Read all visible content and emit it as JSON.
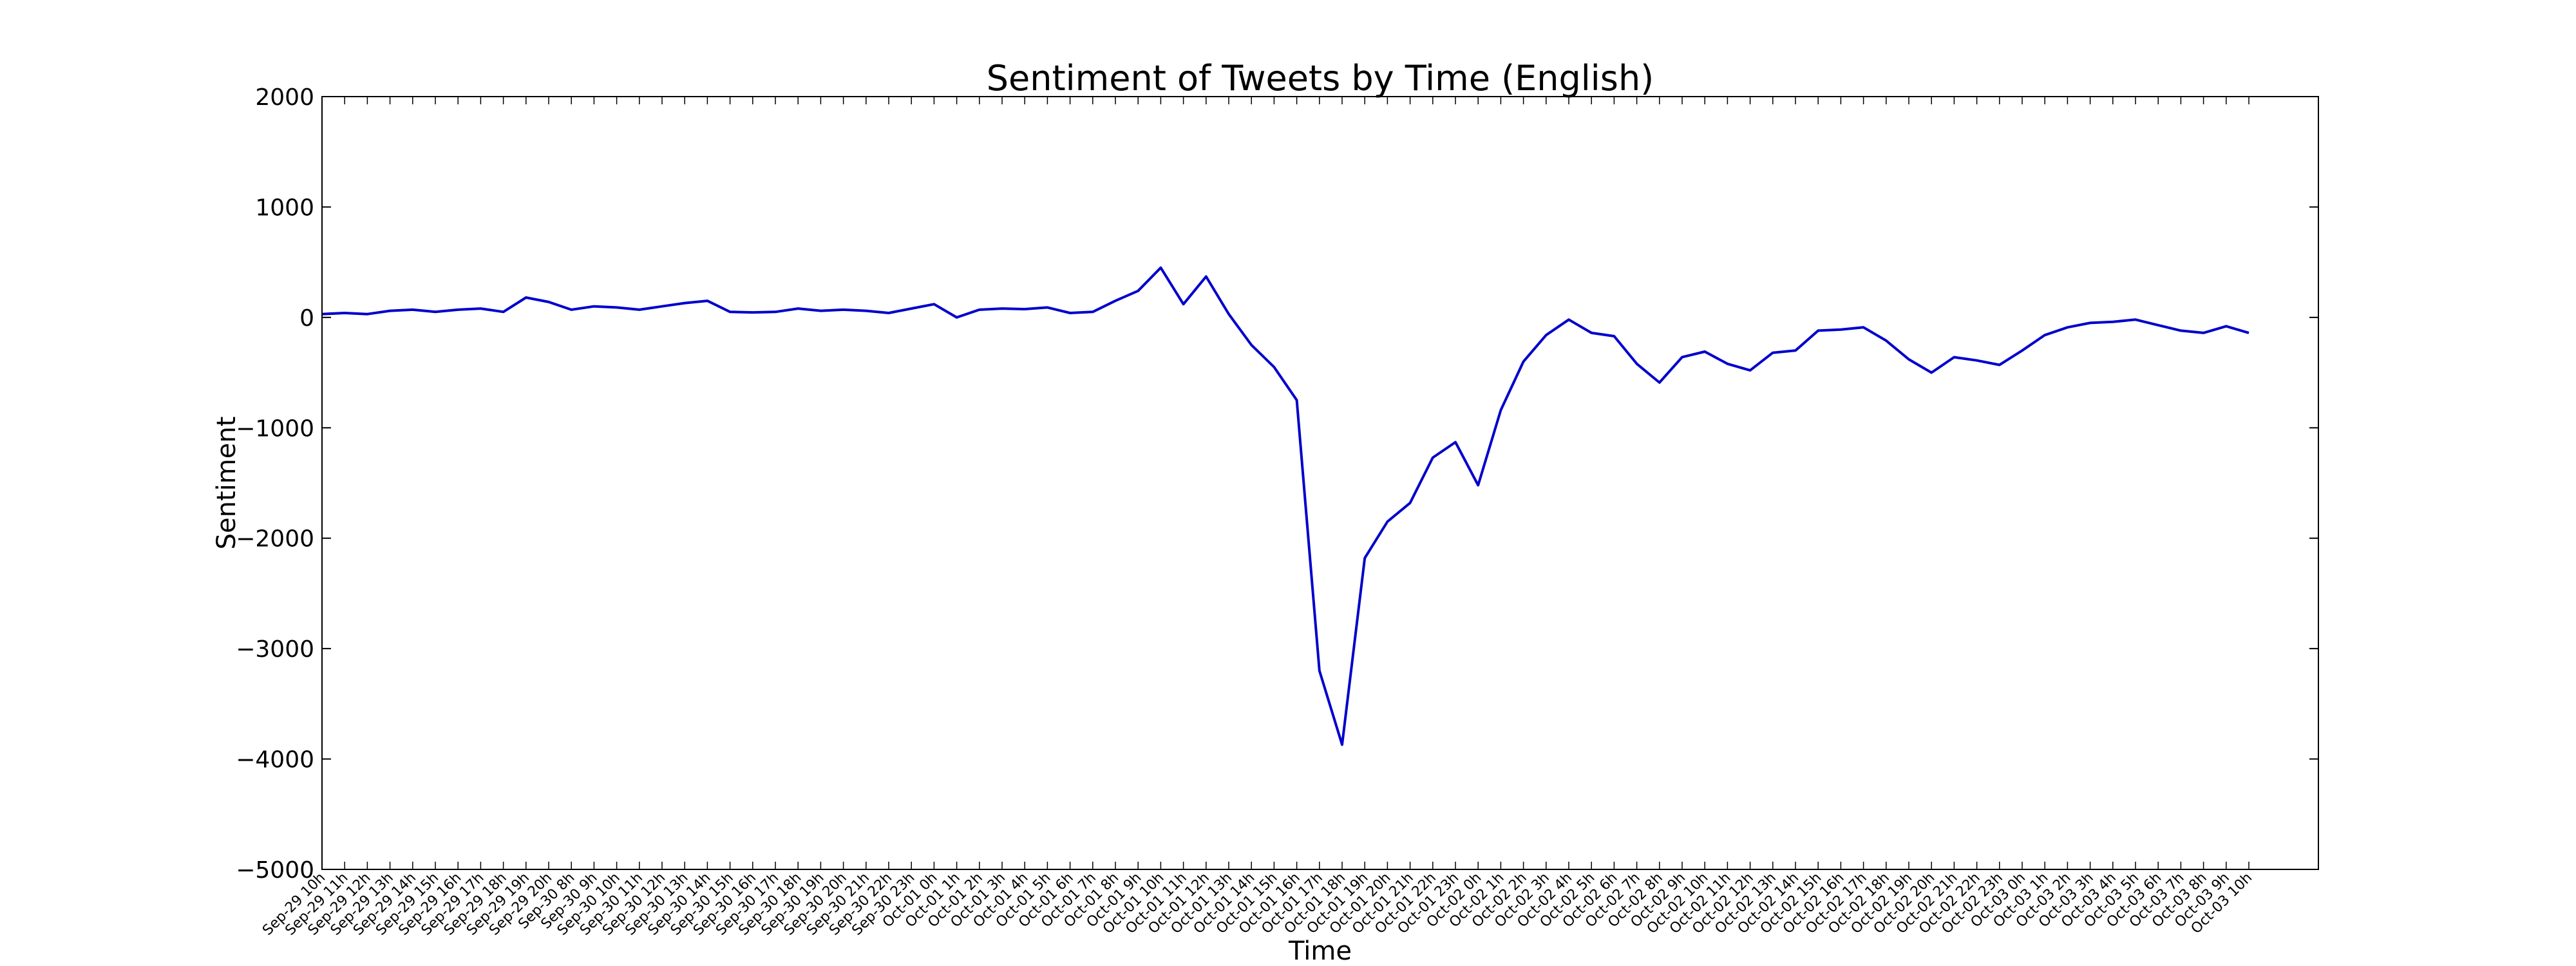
{
  "chart_data": {
    "type": "line",
    "title": "Sentiment of Tweets by Time (English)",
    "xlabel": "Time",
    "ylabel": "Sentiment",
    "ylim": [
      -5000,
      2000
    ],
    "yticks": [
      2000,
      1000,
      0,
      -1000,
      -2000,
      -3000,
      -4000,
      -5000
    ],
    "ytick_labels": [
      "2000",
      "1000",
      "0",
      "−1000",
      "−2000",
      "−3000",
      "−4000",
      "−5000"
    ],
    "grid": false,
    "line_color": "#0000cc",
    "categories": [
      "Sep-29 10h",
      "Sep-29 11h",
      "Sep-29 12h",
      "Sep-29 13h",
      "Sep-29 14h",
      "Sep-29 15h",
      "Sep-29 16h",
      "Sep-29 17h",
      "Sep-29 18h",
      "Sep-29 19h",
      "Sep-29 20h",
      "Sep-30 8h",
      "Sep-30 9h",
      "Sep-30 10h",
      "Sep-30 11h",
      "Sep-30 12h",
      "Sep-30 13h",
      "Sep-30 14h",
      "Sep-30 15h",
      "Sep-30 16h",
      "Sep-30 17h",
      "Sep-30 18h",
      "Sep-30 19h",
      "Sep-30 20h",
      "Sep-30 21h",
      "Sep-30 22h",
      "Sep-30 23h",
      "Oct-01 0h",
      "Oct-01 1h",
      "Oct-01 2h",
      "Oct-01 3h",
      "Oct-01 4h",
      "Oct-01 5h",
      "Oct-01 6h",
      "Oct-01 7h",
      "Oct-01 8h",
      "Oct-01 9h",
      "Oct-01 10h",
      "Oct-01 11h",
      "Oct-01 12h",
      "Oct-01 13h",
      "Oct-01 14h",
      "Oct-01 15h",
      "Oct-01 16h",
      "Oct-01 17h",
      "Oct-01 18h",
      "Oct-01 19h",
      "Oct-01 20h",
      "Oct-01 21h",
      "Oct-01 22h",
      "Oct-01 23h",
      "Oct-02 0h",
      "Oct-02 1h",
      "Oct-02 2h",
      "Oct-02 3h",
      "Oct-02 4h",
      "Oct-02 5h",
      "Oct-02 6h",
      "Oct-02 7h",
      "Oct-02 8h",
      "Oct-02 9h",
      "Oct-02 10h",
      "Oct-02 11h",
      "Oct-02 12h",
      "Oct-02 13h",
      "Oct-02 14h",
      "Oct-02 15h",
      "Oct-02 16h",
      "Oct-02 17h",
      "Oct-02 18h",
      "Oct-02 19h",
      "Oct-02 20h",
      "Oct-02 21h",
      "Oct-02 22h",
      "Oct-02 23h",
      "Oct-03 0h",
      "Oct-03 1h",
      "Oct-03 2h",
      "Oct-03 3h",
      "Oct-03 4h",
      "Oct-03 5h",
      "Oct-03 6h",
      "Oct-03 7h",
      "Oct-03 8h",
      "Oct-03 9h",
      "Oct-03 10h"
    ],
    "values": [
      30,
      40,
      30,
      60,
      70,
      50,
      70,
      80,
      50,
      180,
      140,
      70,
      100,
      90,
      70,
      100,
      130,
      150,
      50,
      45,
      50,
      80,
      60,
      70,
      60,
      40,
      80,
      120,
      0,
      70,
      80,
      75,
      90,
      40,
      50,
      150,
      240,
      450,
      120,
      370,
      30,
      -250,
      -450,
      -750,
      -3200,
      -3870,
      -2180,
      -1850,
      -1680,
      -1270,
      -1130,
      -1520,
      -840,
      -400,
      -160,
      -20,
      -140,
      -170,
      -420,
      -590,
      -360,
      -310,
      -420,
      -480,
      -320,
      -300,
      -120,
      -110,
      -90,
      -210,
      -380,
      -500,
      -360,
      -390,
      -430,
      -300,
      -160,
      -90,
      -50,
      -40,
      -20,
      -70,
      -120,
      -140,
      -80,
      -140
    ]
  }
}
